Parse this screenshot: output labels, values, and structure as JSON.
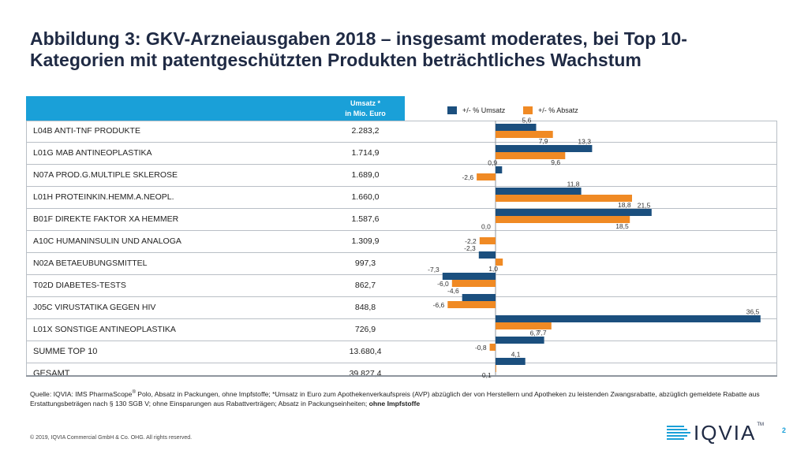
{
  "title_lines": [
    "Abbildung 3: GKV-Arzneiausgaben 2018 – insgesamt moderates, bei Top 10-",
    "Kategorien mit patentgeschützten Produkten beträchtliches Wachstum"
  ],
  "header": {
    "umsatz_line1": "Umsatz *",
    "umsatz_line2": "in Mio. Euro"
  },
  "legend": {
    "umsatz_label": "+/- % Umsatz",
    "absatz_label": "+/- % Absatz"
  },
  "colors": {
    "umsatz": "#1b4f7e",
    "absatz": "#f08a24",
    "header_band": "#1aa0d8"
  },
  "rows": [
    {
      "name": "L04B  ANTI-TNF PRODUKTE",
      "umsatz": "2.283,2"
    },
    {
      "name": "L01G  MAB ANTINEOPLASTIKA",
      "umsatz": "1.714,9"
    },
    {
      "name": "N07A  PROD.G.MULTIPLE SKLEROSE",
      "umsatz": "1.689,0"
    },
    {
      "name": "L01H  PROTEINKIN.HEMM.A.NEOPL.",
      "umsatz": "1.660,0"
    },
    {
      "name": "B01F  DIREKTE FAKTOR XA HEMMER",
      "umsatz": "1.587,6"
    },
    {
      "name": "A10C  HUMANINSULIN UND ANALOGA",
      "umsatz": "1.309,9"
    },
    {
      "name": "N02A  BETAEUBUNGSMITTEL",
      "umsatz": "997,3"
    },
    {
      "name": "T02D  DIABETES-TESTS",
      "umsatz": "862,7"
    },
    {
      "name": "J05C  VIRUSTATIKA GEGEN HIV",
      "umsatz": "848,8"
    },
    {
      "name": "L01X  SONSTIGE ANTINEOPLASTIKA",
      "umsatz": "726,9"
    },
    {
      "name": "SUMME TOP 10",
      "umsatz": "13.680,4"
    },
    {
      "name": "GESAMT",
      "umsatz": "39.827,4"
    }
  ],
  "chart_data": {
    "type": "bar",
    "orientation": "horizontal",
    "categories": [
      "L04B  ANTI-TNF PRODUKTE",
      "L01G  MAB ANTINEOPLASTIKA",
      "N07A  PROD.G.MULTIPLE SKLEROSE",
      "L01H  PROTEINKIN.HEMM.A.NEOPL.",
      "B01F  DIREKTE FAKTOR XA HEMMER",
      "A10C  HUMANINSULIN UND ANALOGA",
      "N02A  BETAEUBUNGSMITTEL",
      "T02D  DIABETES-TESTS",
      "J05C  VIRUSTATIKA GEGEN HIV",
      "L01X  SONSTIGE ANTINEOPLASTIKA",
      "SUMME TOP 10",
      "GESAMT"
    ],
    "series": [
      {
        "name": "+/- % Umsatz",
        "values": [
          5.6,
          13.3,
          0.9,
          11.8,
          21.5,
          0.0,
          -2.3,
          -7.3,
          -4.6,
          36.5,
          6.7,
          4.1
        ],
        "labels": [
          "5,6",
          "13,3",
          "0,9",
          "11,8",
          "21,5",
          "0,0",
          "-2,3",
          "-7,3",
          "-4,6",
          "36,5",
          "6,7",
          "4,1"
        ]
      },
      {
        "name": "+/- % Absatz",
        "values": [
          7.9,
          9.6,
          -2.6,
          18.8,
          18.5,
          -2.2,
          1.0,
          -6.0,
          -6.6,
          7.7,
          -0.8,
          0.1
        ],
        "labels": [
          "7,9",
          "9,6",
          "-2,6",
          "18,8",
          "18,5",
          "-2,2",
          "1,0",
          "-6,0",
          "-6,6",
          "7,7",
          "-0,8",
          "0,1"
        ]
      }
    ],
    "xlim": [
      -10,
      37
    ],
    "legend_position": "top"
  },
  "footnote": {
    "source_prefix": "Quelle: IQVIA: IMS PharmaScope",
    "reg_mark": "®",
    "source_main": " Polo, Absatz in Packungen, ohne Impfstoffe; *Umsatz in Euro zum Apothekenverkaufspreis (AVP) abzüglich der von Herstellern und Apotheken zu leistenden Zwangsrabatte, abzüglich gemeldete Rabatte aus Erstattungsbeträgen nach  § 130 SGB V; ohne Einsparungen aus Rabattverträgen; Absatz in Packungseinheiten; ",
    "source_bold": "ohne Impfstoffe"
  },
  "copyright": "© 2019, IQVIA Commercial GmbH & Co. OHG. All rights reserved.",
  "logo": {
    "text": "IQVIA",
    "tm": "TM"
  },
  "page_number": "2"
}
